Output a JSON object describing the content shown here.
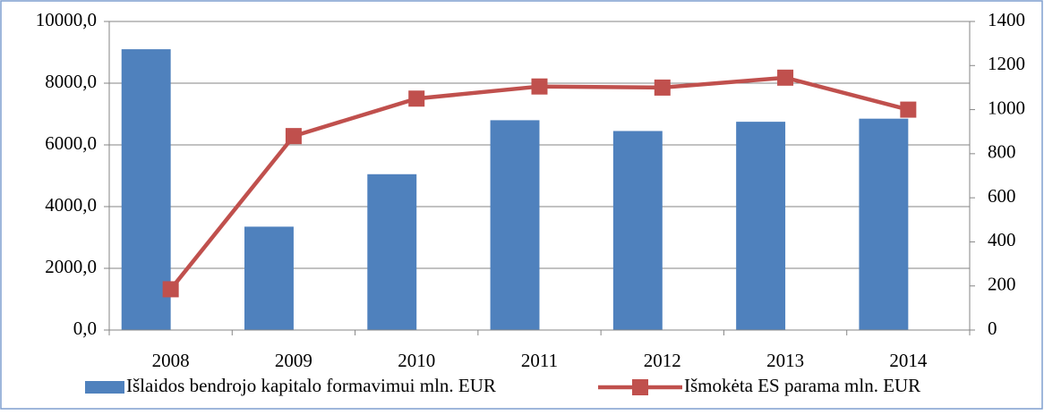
{
  "chart_data": {
    "type": "bar_line",
    "categories": [
      "2008",
      "2009",
      "2010",
      "2011",
      "2012",
      "2013",
      "2014"
    ],
    "series": [
      {
        "name": "Išlaidos bendrojo kapitalo formavimui mln. EUR",
        "color": "#4f81bd",
        "type": "bar",
        "values": [
          9100,
          3350,
          5050,
          6800,
          6450,
          6750,
          6850
        ]
      },
      {
        "name": "Išmokėta ES parama mln. EUR",
        "color": "#c0504d",
        "type": "line",
        "axis": "y2",
        "values": [
          185,
          880,
          1050,
          1105,
          1100,
          1145,
          1000
        ]
      }
    ],
    "ylim": [
      0,
      10000
    ],
    "yticks": [
      {
        "value": 0,
        "label": "0,0"
      },
      {
        "value": 2000,
        "label": "2000,0"
      },
      {
        "value": 4000,
        "label": "4000,0"
      },
      {
        "value": 6000,
        "label": "6000,0"
      },
      {
        "value": 8000,
        "label": "8000,0"
      },
      {
        "value": 10000,
        "label": "10000,0"
      }
    ],
    "y2lim": [
      0,
      1400
    ],
    "y2ticks": [
      0,
      200,
      400,
      600,
      800,
      1000,
      1200,
      1400
    ],
    "grid": true,
    "legend": "bottom"
  }
}
